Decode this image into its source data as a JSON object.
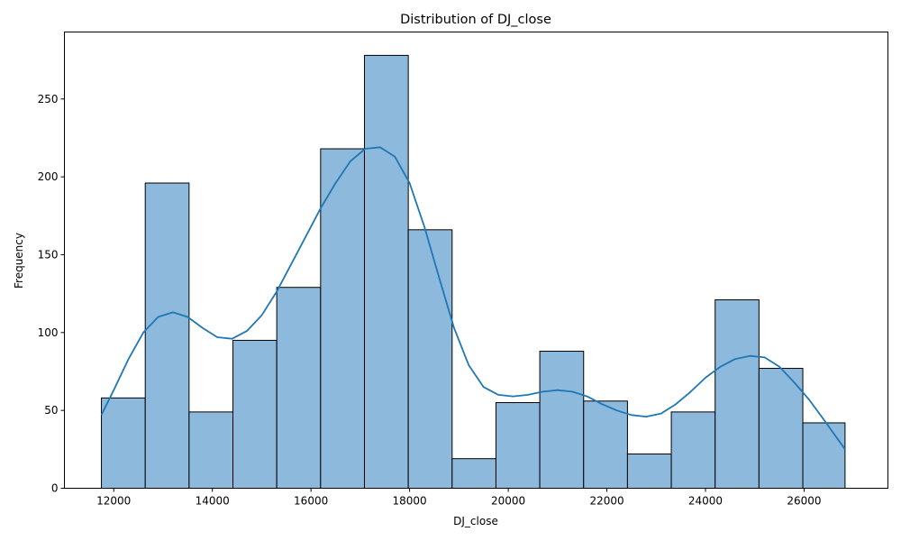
{
  "chart_data": {
    "type": "bar",
    "title": "Distribution of DJ_close",
    "xlabel": "DJ_close",
    "ylabel": "Frequency",
    "xlim": [
      11000,
      27700
    ],
    "ylim": [
      0,
      293
    ],
    "x_ticks": [
      12000,
      14000,
      16000,
      18000,
      20000,
      22000,
      24000,
      26000
    ],
    "y_ticks": [
      0,
      50,
      100,
      150,
      200,
      250
    ],
    "bin_edges": [
      11750,
      12639,
      13528,
      14417,
      15306,
      16195,
      17084,
      17973,
      18862,
      19751,
      20640,
      21529,
      22418,
      23307,
      24196,
      25085,
      25974,
      26830
    ],
    "values": [
      58,
      196,
      49,
      95,
      129,
      218,
      278,
      166,
      19,
      55,
      88,
      56,
      22,
      49,
      121,
      77,
      42
    ],
    "kde": {
      "x": [
        11750,
        12000,
        12300,
        12600,
        12900,
        13200,
        13500,
        13800,
        14100,
        14400,
        14700,
        15000,
        15300,
        15600,
        15900,
        16200,
        16500,
        16800,
        17100,
        17400,
        17700,
        18000,
        18300,
        18600,
        18900,
        19200,
        19500,
        19800,
        20100,
        20400,
        20700,
        21000,
        21300,
        21600,
        21900,
        22200,
        22500,
        22800,
        23100,
        23400,
        23700,
        24000,
        24300,
        24600,
        24900,
        25200,
        25500,
        25800,
        26100,
        26400,
        26830
      ],
      "y": [
        47,
        63,
        83,
        100,
        110,
        113,
        110,
        103,
        97,
        96,
        101,
        111,
        126,
        144,
        162,
        180,
        196,
        210,
        218,
        219,
        213,
        196,
        168,
        135,
        103,
        79,
        65,
        60,
        59,
        60,
        62,
        63,
        62,
        59,
        54,
        50,
        47,
        46,
        48,
        54,
        62,
        71,
        78,
        83,
        85,
        84,
        78,
        68,
        57,
        44,
        25
      ]
    },
    "colors": {
      "bar_fill": "#8db9dc",
      "bar_edge": "#000000",
      "kde_line": "#1f77b4"
    },
    "grid": false,
    "legend": "none"
  }
}
